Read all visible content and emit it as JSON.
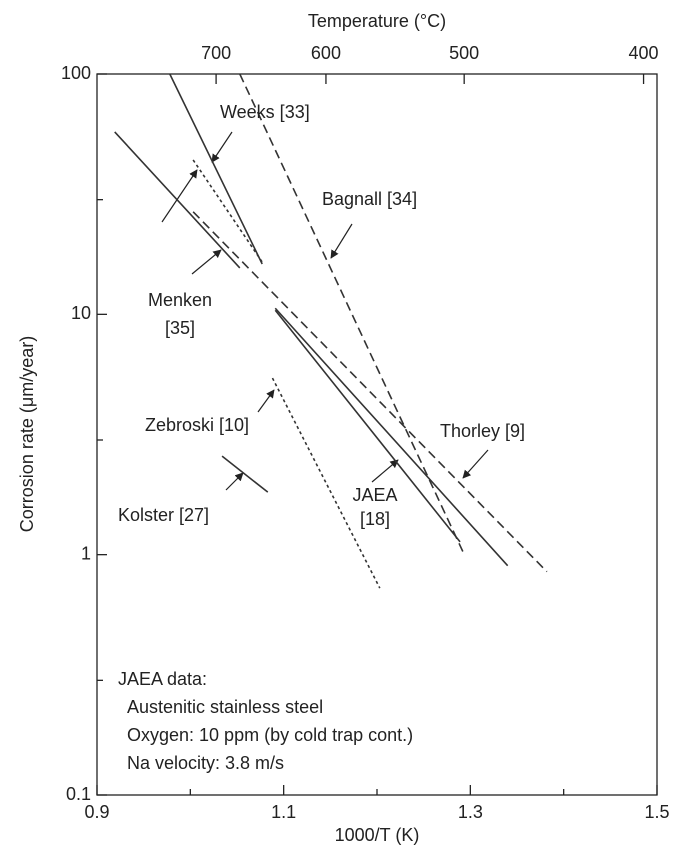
{
  "chart_data": {
    "type": "line",
    "x_label": "1000/T (K)",
    "y_label": "Corrosion rate (μm/year)",
    "x2_label": "Temperature (°C)",
    "log_y": true,
    "xlim": [
      0.9,
      1.5
    ],
    "xticks": [
      0.9,
      1.1,
      1.3,
      1.5
    ],
    "xminor": [
      1.0,
      1.2,
      1.4
    ],
    "ylim": [
      0.1,
      100
    ],
    "yticks": [
      0.1,
      1,
      10,
      100
    ],
    "yminor": [
      0.3,
      3,
      30
    ],
    "x2ticks": [
      {
        "value": 1.0276,
        "label": "700"
      },
      {
        "value": 1.1453,
        "label": "600"
      },
      {
        "value": 1.2934,
        "label": "500"
      },
      {
        "value": 1.4856,
        "label": "400"
      }
    ],
    "series": [
      {
        "color": "#333333",
        "style": "solid",
        "x": [
          0.978,
          1.077
        ],
        "values": [
          100,
          16.2
        ]
      },
      {
        "color": "#333333",
        "style": "solid",
        "x": [
          0.919,
          1.053
        ],
        "values": [
          57.4,
          15.6
        ]
      },
      {
        "color": "#333333",
        "style": "dotted",
        "x": [
          1.003,
          1.077
        ],
        "values": [
          43.9,
          16.5
        ]
      },
      {
        "color": "#333333",
        "style": "dashed",
        "x": [
          1.003,
          1.382
        ],
        "values": [
          26.7,
          0.85
        ]
      },
      {
        "color": "#333333",
        "style": "dashed",
        "x": [
          1.053,
          1.292
        ],
        "values": [
          100,
          1.03
        ]
      },
      {
        "color": "#333333",
        "style": "solid",
        "x": [
          1.091,
          1.34
        ],
        "values": [
          10.6,
          0.9
        ]
      },
      {
        "color": "#333333",
        "style": "solid",
        "x": [
          1.091,
          1.289
        ],
        "values": [
          10.4,
          1.13
        ]
      },
      {
        "color": "#333333",
        "style": "dotted",
        "x": [
          1.088,
          1.203
        ],
        "values": [
          5.43,
          0.726
        ]
      },
      {
        "color": "#333333",
        "style": "solid",
        "x": [
          1.034,
          1.083
        ],
        "values": [
          2.57,
          1.82
        ]
      }
    ],
    "annotations": [
      "Weeks [33]",
      "Bagnall [34]",
      "Menken",
      "[35]",
      "Zebroski [10]",
      "Thorley [9]",
      "Kolster [27]",
      "JAEA",
      "[18]"
    ],
    "note": [
      "JAEA data:",
      "Austenitic stainless steel",
      "Oxygen: 10 ppm (by cold trap cont.)",
      "Na velocity: 3.8 m/s"
    ]
  }
}
